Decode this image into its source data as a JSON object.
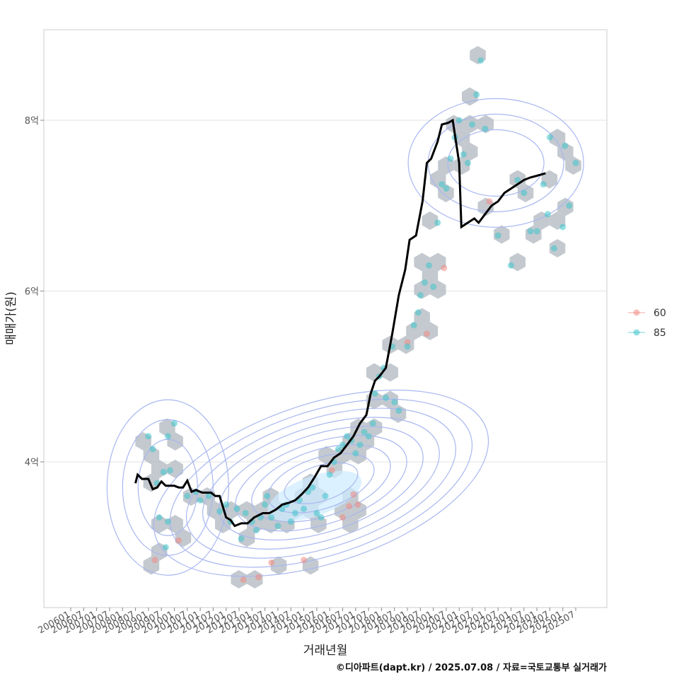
{
  "chart_data": {
    "type": "scatter",
    "xlabel": "거래년월",
    "ylabel": "매매가(원)",
    "caption": "©디아파트(dapt.kr) / 2025.07.08 / 자료=국토교통부 실거래가",
    "x_range": [
      "2006-01",
      "2025-12"
    ],
    "ylim": [
      2.55,
      8.9
    ],
    "x_ticks": [
      "200601",
      "200607",
      "200701",
      "200707",
      "200801",
      "200807",
      "200901",
      "200907",
      "201001",
      "201007",
      "201101",
      "201107",
      "201201",
      "201207",
      "201301",
      "201307",
      "201401",
      "201407",
      "201501",
      "201507",
      "201601",
      "201607",
      "201701",
      "201707",
      "201801",
      "201807",
      "201901",
      "201907",
      "202001",
      "202007",
      "202101",
      "202107",
      "202201",
      "202207",
      "202301",
      "202307",
      "202401",
      "202407",
      "202501",
      "202507"
    ],
    "y_ticks": [
      {
        "value": 4,
        "label": "4억"
      },
      {
        "value": 6,
        "label": "6억"
      },
      {
        "value": 8,
        "label": "8억"
      }
    ],
    "grid": true,
    "legend_position": "right",
    "legend": [
      {
        "label": "60",
        "color": "#F08A84"
      },
      {
        "label": "85",
        "color": "#3EC5CC"
      }
    ],
    "colors": {
      "trend": "#000000",
      "hex": "#B4BBC3",
      "contour": "#A9B7F0",
      "density": "#CDEBFF"
    },
    "series": [
      {
        "name": "60",
        "points": [
          [
            "2009-04",
            2.85
          ],
          [
            "2010-03",
            3.08
          ],
          [
            "2012-09",
            2.62
          ],
          [
            "2013-04",
            2.65
          ],
          [
            "2013-10",
            2.82
          ],
          [
            "2015-01",
            2.85
          ],
          [
            "2016-10",
            3.48
          ],
          [
            "2016-12",
            3.62
          ],
          [
            "2017-02",
            3.5
          ],
          [
            "2016-07",
            3.35
          ],
          [
            "2019-10",
            5.5
          ],
          [
            "2020-06",
            6.27
          ],
          [
            "2022-03",
            7.05
          ],
          [
            "2019-01",
            5.4
          ],
          [
            "2016-02",
            3.9
          ]
        ]
      },
      {
        "name": "85",
        "points": [
          [
            "2009-01",
            4.3
          ],
          [
            "2009-03",
            4.15
          ],
          [
            "2009-05",
            3.75
          ],
          [
            "2009-08",
            3.88
          ],
          [
            "2009-11",
            3.9
          ],
          [
            "2010-01",
            4.45
          ],
          [
            "2009-10",
            4.3
          ],
          [
            "2009-06",
            3.35
          ],
          [
            "2009-10",
            3.3
          ],
          [
            "2009-09",
            3.0
          ],
          [
            "2010-07",
            3.6
          ],
          [
            "2010-11",
            3.65
          ],
          [
            "2011-01",
            3.55
          ],
          [
            "2011-05",
            3.6
          ],
          [
            "2011-10",
            3.42
          ],
          [
            "2012-01",
            3.5
          ],
          [
            "2012-03",
            3.3
          ],
          [
            "2012-06",
            3.45
          ],
          [
            "2012-08",
            3.1
          ],
          [
            "2012-10",
            3.4
          ],
          [
            "2013-01",
            3.3
          ],
          [
            "2013-03",
            3.2
          ],
          [
            "2013-05",
            3.35
          ],
          [
            "2013-07",
            3.5
          ],
          [
            "2013-08",
            3.6
          ],
          [
            "2013-10",
            3.35
          ],
          [
            "2014-01",
            3.25
          ],
          [
            "2014-03",
            3.45
          ],
          [
            "2014-05",
            3.5
          ],
          [
            "2014-07",
            3.3
          ],
          [
            "2014-09",
            3.4
          ],
          [
            "2014-11",
            3.55
          ],
          [
            "2015-01",
            3.45
          ],
          [
            "2015-03",
            3.65
          ],
          [
            "2015-05",
            3.7
          ],
          [
            "2015-07",
            3.4
          ],
          [
            "2015-09",
            3.35
          ],
          [
            "2015-11",
            3.6
          ],
          [
            "2016-01",
            3.85
          ],
          [
            "2016-03",
            4.0
          ],
          [
            "2016-05",
            4.15
          ],
          [
            "2016-07",
            4.2
          ],
          [
            "2016-09",
            4.3
          ],
          [
            "2016-11",
            4.25
          ],
          [
            "2017-01",
            4.1
          ],
          [
            "2017-03",
            4.2
          ],
          [
            "2017-05",
            4.35
          ],
          [
            "2017-07",
            4.3
          ],
          [
            "2017-09",
            4.45
          ],
          [
            "2017-10",
            4.8
          ],
          [
            "2017-12",
            5.0
          ],
          [
            "2018-02",
            5.1
          ],
          [
            "2018-03",
            4.75
          ],
          [
            "2018-06",
            5.35
          ],
          [
            "2018-07",
            4.7
          ],
          [
            "2018-09",
            4.6
          ],
          [
            "2019-01",
            5.35
          ],
          [
            "2019-04",
            5.6
          ],
          [
            "2019-06",
            5.75
          ],
          [
            "2019-07",
            5.95
          ],
          [
            "2019-09",
            6.1
          ],
          [
            "2019-11",
            6.3
          ],
          [
            "2020-01",
            6.05
          ],
          [
            "2020-03",
            6.8
          ],
          [
            "2020-05",
            7.25
          ],
          [
            "2020-07",
            7.2
          ],
          [
            "2020-09",
            7.55
          ],
          [
            "2020-11",
            7.8
          ],
          [
            "2021-01",
            8.0
          ],
          [
            "2021-03",
            7.6
          ],
          [
            "2021-05",
            7.5
          ],
          [
            "2021-07",
            7.95
          ],
          [
            "2021-09",
            8.3
          ],
          [
            "2021-11",
            8.7
          ],
          [
            "2022-01",
            7.9
          ],
          [
            "2022-07",
            6.65
          ],
          [
            "2023-01",
            6.3
          ],
          [
            "2023-04",
            7.3
          ],
          [
            "2023-07",
            7.15
          ],
          [
            "2023-10",
            6.7
          ],
          [
            "2024-01",
            6.7
          ],
          [
            "2024-04",
            7.25
          ],
          [
            "2024-07",
            7.8
          ],
          [
            "2024-09",
            6.5
          ],
          [
            "2025-01",
            6.75
          ],
          [
            "2025-04",
            7.0
          ],
          [
            "2025-07",
            7.5
          ],
          [
            "2025-02",
            7.7
          ],
          [
            "2024-06",
            6.9
          ]
        ]
      }
    ],
    "trend": {
      "name": "moving-average",
      "points": [
        [
          "2008-07",
          3.75
        ],
        [
          "2008-08",
          3.85
        ],
        [
          "2008-10",
          3.8
        ],
        [
          "2009-01",
          3.8
        ],
        [
          "2009-03",
          3.68
        ],
        [
          "2009-05",
          3.7
        ],
        [
          "2009-07",
          3.77
        ],
        [
          "2009-09",
          3.72
        ],
        [
          "2010-01",
          3.72
        ],
        [
          "2010-03",
          3.7
        ],
        [
          "2010-05",
          3.7
        ],
        [
          "2010-07",
          3.78
        ],
        [
          "2010-09",
          3.65
        ],
        [
          "2010-11",
          3.67
        ],
        [
          "2011-02",
          3.64
        ],
        [
          "2011-06",
          3.64
        ],
        [
          "2011-08",
          3.6
        ],
        [
          "2011-10",
          3.6
        ],
        [
          "2012-01",
          3.35
        ],
        [
          "2012-03",
          3.32
        ],
        [
          "2012-05",
          3.25
        ],
        [
          "2012-08",
          3.28
        ],
        [
          "2012-11",
          3.28
        ],
        [
          "2013-02",
          3.35
        ],
        [
          "2013-06",
          3.4
        ],
        [
          "2013-09",
          3.4
        ],
        [
          "2013-12",
          3.44
        ],
        [
          "2014-03",
          3.5
        ],
        [
          "2014-06",
          3.52
        ],
        [
          "2014-09",
          3.55
        ],
        [
          "2014-12",
          3.62
        ],
        [
          "2015-03",
          3.7
        ],
        [
          "2015-06",
          3.82
        ],
        [
          "2015-09",
          3.95
        ],
        [
          "2015-12",
          3.95
        ],
        [
          "2016-03",
          4.05
        ],
        [
          "2016-06",
          4.1
        ],
        [
          "2016-09",
          4.2
        ],
        [
          "2016-12",
          4.3
        ],
        [
          "2017-03",
          4.45
        ],
        [
          "2017-06",
          4.55
        ],
        [
          "2017-08",
          4.8
        ],
        [
          "2017-10",
          4.95
        ],
        [
          "2017-12",
          5.0
        ],
        [
          "2018-03",
          5.1
        ],
        [
          "2018-06",
          5.5
        ],
        [
          "2018-09",
          5.95
        ],
        [
          "2018-12",
          6.25
        ],
        [
          "2019-02",
          6.6
        ],
        [
          "2019-05",
          6.65
        ],
        [
          "2019-08",
          7.05
        ],
        [
          "2019-10",
          7.5
        ],
        [
          "2019-12",
          7.55
        ],
        [
          "2020-03",
          7.75
        ],
        [
          "2020-05",
          7.95
        ],
        [
          "2020-08",
          7.97
        ],
        [
          "2020-10",
          8.0
        ],
        [
          "2021-01",
          7.5
        ],
        [
          "2021-02",
          6.75
        ],
        [
          "2021-05",
          6.8
        ],
        [
          "2021-08",
          6.85
        ],
        [
          "2021-10",
          6.8
        ],
        [
          "2022-01",
          6.9
        ],
        [
          "2022-04",
          7.0
        ],
        [
          "2022-07",
          7.05
        ],
        [
          "2022-10",
          7.15
        ],
        [
          "2023-01",
          7.2
        ],
        [
          "2023-04",
          7.25
        ],
        [
          "2023-07",
          7.3
        ],
        [
          "2023-10",
          7.33
        ],
        [
          "2024-01",
          7.35
        ],
        [
          "2024-05",
          7.38
        ]
      ]
    }
  }
}
